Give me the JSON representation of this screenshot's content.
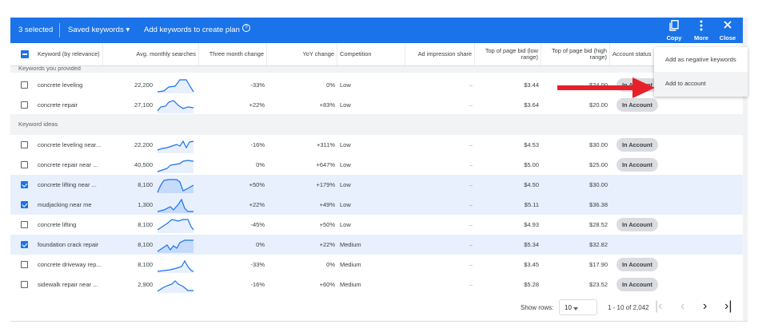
{
  "toolbar": {
    "selected": "3 selected",
    "saved_keywords": "Saved keywords",
    "saved_caret": "▾",
    "add_to_plan": "Add keywords to create plan",
    "help_icon": "?",
    "copy": "Copy",
    "more": "More",
    "close": "Close"
  },
  "columns": {
    "keyword": "Keyword (by relevance)",
    "avg": "Avg. monthly searches",
    "three_month": "Three month change",
    "yoy": "YoY change",
    "competition": "Competition",
    "impression": "Ad impression share",
    "bid_low": "Top of page bid (low range)",
    "bid_high": "Top of page bid (high range)",
    "status": "Account status"
  },
  "sections": {
    "provided": "Keywords you provided",
    "ideas": "Keyword ideas"
  },
  "rows_provided": [
    {
      "keyword": "concrete leveling",
      "avg": "22,200",
      "three": "-33%",
      "yoy": "0%",
      "comp": "Low",
      "imp": "–",
      "low": "$3.44",
      "high": "$24.00",
      "status": "In Account",
      "checked": false,
      "spark": "flat-peak"
    },
    {
      "keyword": "concrete repair",
      "avg": "27,100",
      "three": "+22%",
      "yoy": "+83%",
      "comp": "Low",
      "imp": "–",
      "low": "$3.64",
      "high": "$20.00",
      "status": "In Account",
      "checked": false,
      "spark": "hump"
    }
  ],
  "rows_ideas": [
    {
      "keyword": "concrete leveling near...",
      "avg": "22,200",
      "three": "-16%",
      "yoy": "+311%",
      "comp": "Low",
      "imp": "–",
      "low": "$4.53",
      "high": "$30.00",
      "status": "In Account",
      "checked": false,
      "spark": "rise-zig"
    },
    {
      "keyword": "concrete repair near ...",
      "avg": "40,500",
      "three": "0%",
      "yoy": "+647%",
      "comp": "Low",
      "imp": "–",
      "low": "$5.00",
      "high": "$25.00",
      "status": "In Account",
      "checked": false,
      "spark": "rise"
    },
    {
      "keyword": "concrete lifting near ...",
      "avg": "8,100",
      "three": "+50%",
      "yoy": "+179%",
      "comp": "Low",
      "imp": "–",
      "low": "$4.50",
      "high": "$30.00",
      "status": "",
      "checked": true,
      "spark": "arch"
    },
    {
      "keyword": "mudjacking near me",
      "avg": "1,300",
      "three": "+22%",
      "yoy": "+49%",
      "comp": "Low",
      "imp": "–",
      "low": "$5.11",
      "high": "$36.38",
      "status": "",
      "checked": true,
      "spark": "spike"
    },
    {
      "keyword": "concrete lifting",
      "avg": "8,100",
      "three": "-45%",
      "yoy": "+50%",
      "comp": "Low",
      "imp": "–",
      "low": "$4.93",
      "high": "$28.52",
      "status": "In Account",
      "checked": false,
      "spark": "plateau"
    },
    {
      "keyword": "foundation crack repair",
      "avg": "8,100",
      "three": "0%",
      "yoy": "+22%",
      "comp": "Medium",
      "imp": "–",
      "low": "$5.34",
      "high": "$32.82",
      "status": "",
      "checked": true,
      "spark": "wave"
    },
    {
      "keyword": "concrete driveway rep...",
      "avg": "8,100",
      "three": "-33%",
      "yoy": "0%",
      "comp": "Medium",
      "imp": "–",
      "low": "$3.45",
      "high": "$17.90",
      "status": "In Account",
      "checked": false,
      "spark": "late-spike"
    },
    {
      "keyword": "sidewalk repair near ...",
      "avg": "2,900",
      "three": "-16%",
      "yoy": "+60%",
      "comp": "Medium",
      "imp": "–",
      "low": "$5.28",
      "high": "$23.52",
      "status": "In Account",
      "checked": false,
      "spark": "hump-drop"
    }
  ],
  "menu": {
    "items": [
      "Add as negative keywords",
      "Add to account"
    ],
    "highlighted_index": 1
  },
  "annotation": {
    "arrow_color": "#e8202a"
  },
  "footer": {
    "show_rows": "Show rows:",
    "rows_value": "10",
    "range": "1 - 10 of 2,042",
    "first_page_icon": "|‹",
    "prev_icon": "‹",
    "next_icon": "›",
    "last_page_icon": "›|"
  },
  "colors": {
    "accent": "#1a73e8",
    "selected_row": "#e8f0fe",
    "sparkline": "#1a73e8",
    "arrow": "#e8202a"
  }
}
